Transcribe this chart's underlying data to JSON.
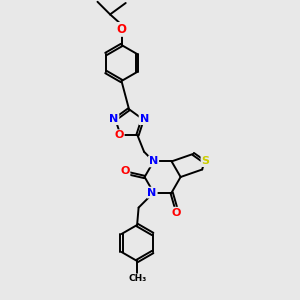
{
  "bg_color": "#e8e8e8",
  "bond_color": "#000000",
  "bond_width": 1.4,
  "dbo": 0.055,
  "atom_colors": {
    "N": "#0000ff",
    "O": "#ff0000",
    "S": "#cccc00",
    "C": "#000000"
  },
  "fs": 8.5
}
